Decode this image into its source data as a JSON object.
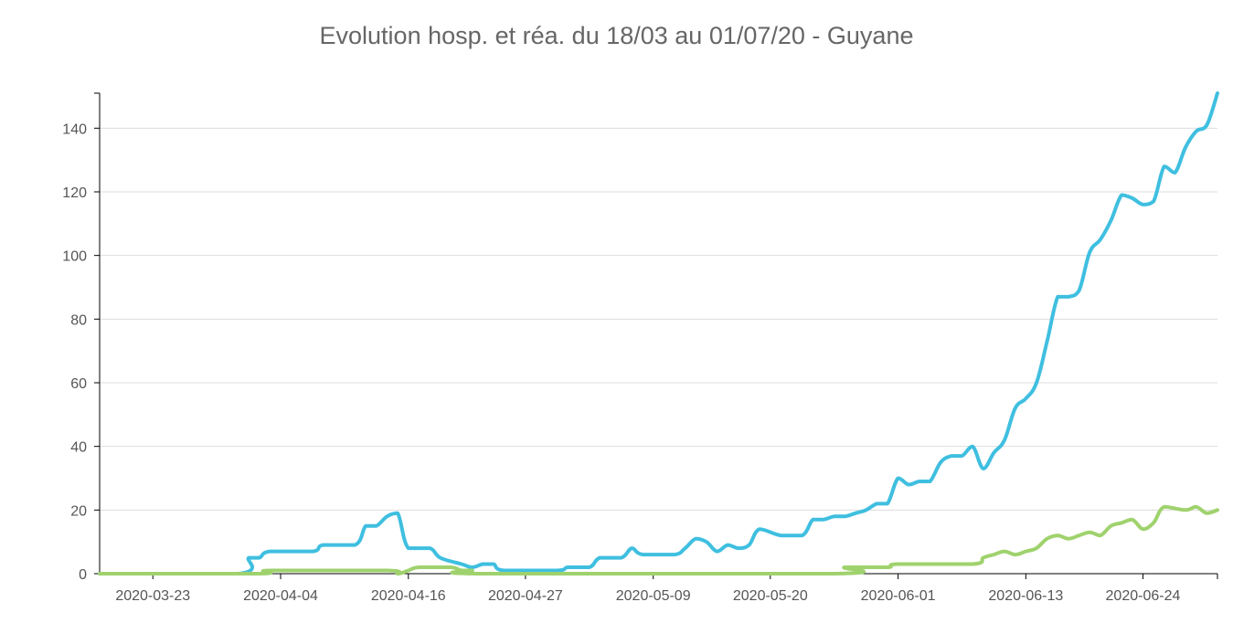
{
  "chart_data": {
    "type": "line",
    "title": "Evolution hosp. et réa. du 18/03 au 01/07/20 - Guyane",
    "xlabel": "",
    "ylabel": "",
    "x_start": "2020-03-18",
    "x_end": "2020-07-01",
    "x_ticks": [
      "2020-03-23",
      "2020-04-04",
      "2020-04-16",
      "2020-04-27",
      "2020-05-09",
      "2020-05-20",
      "2020-06-01",
      "2020-06-13",
      "2020-06-24"
    ],
    "y_ticks": [
      0,
      20,
      40,
      60,
      80,
      100,
      120,
      140
    ],
    "ylim": [
      0,
      151
    ],
    "grid": true,
    "legend": "none",
    "series": [
      {
        "color": "#3fbfe0",
        "points": [
          [
            "2020-03-18",
            0
          ],
          [
            "2020-03-31",
            0
          ],
          [
            "2020-04-01",
            5
          ],
          [
            "2020-04-02",
            5
          ],
          [
            "2020-04-03",
            7
          ],
          [
            "2020-04-07",
            7
          ],
          [
            "2020-04-08",
            9
          ],
          [
            "2020-04-11",
            9
          ],
          [
            "2020-04-12",
            15
          ],
          [
            "2020-04-13",
            15
          ],
          [
            "2020-04-14",
            18
          ],
          [
            "2020-04-15",
            19
          ],
          [
            "2020-04-16",
            8
          ],
          [
            "2020-04-18",
            8
          ],
          [
            "2020-04-19",
            5
          ],
          [
            "2020-04-21",
            3
          ],
          [
            "2020-04-22",
            2
          ],
          [
            "2020-04-23",
            3
          ],
          [
            "2020-04-24",
            3
          ],
          [
            "2020-04-25",
            1
          ],
          [
            "2020-04-30",
            1
          ],
          [
            "2020-05-01",
            2
          ],
          [
            "2020-05-03",
            2
          ],
          [
            "2020-05-04",
            5
          ],
          [
            "2020-05-06",
            5
          ],
          [
            "2020-05-07",
            8
          ],
          [
            "2020-05-08",
            6
          ],
          [
            "2020-05-11",
            6
          ],
          [
            "2020-05-12",
            8
          ],
          [
            "2020-05-13",
            11
          ],
          [
            "2020-05-14",
            10
          ],
          [
            "2020-05-15",
            7
          ],
          [
            "2020-05-16",
            9
          ],
          [
            "2020-05-17",
            8
          ],
          [
            "2020-05-18",
            9
          ],
          [
            "2020-05-19",
            14
          ],
          [
            "2020-05-21",
            12
          ],
          [
            "2020-05-23",
            12
          ],
          [
            "2020-05-24",
            17
          ],
          [
            "2020-05-25",
            17
          ],
          [
            "2020-05-26",
            18
          ],
          [
            "2020-05-27",
            18
          ],
          [
            "2020-05-28",
            19
          ],
          [
            "2020-05-29",
            20
          ],
          [
            "2020-05-30",
            22
          ],
          [
            "2020-05-31",
            22
          ],
          [
            "2020-06-01",
            30
          ],
          [
            "2020-06-02",
            28
          ],
          [
            "2020-06-03",
            29
          ],
          [
            "2020-06-04",
            29
          ],
          [
            "2020-06-05",
            35
          ],
          [
            "2020-06-06",
            37
          ],
          [
            "2020-06-07",
            37
          ],
          [
            "2020-06-08",
            40
          ],
          [
            "2020-06-09",
            33
          ],
          [
            "2020-06-10",
            38
          ],
          [
            "2020-06-11",
            42
          ],
          [
            "2020-06-12",
            52
          ],
          [
            "2020-06-13",
            55
          ],
          [
            "2020-06-14",
            60
          ],
          [
            "2020-06-15",
            73
          ],
          [
            "2020-06-16",
            87
          ],
          [
            "2020-06-17",
            87
          ],
          [
            "2020-06-18",
            89
          ],
          [
            "2020-06-19",
            101
          ],
          [
            "2020-06-20",
            105
          ],
          [
            "2020-06-21",
            111
          ],
          [
            "2020-06-22",
            119
          ],
          [
            "2020-06-23",
            118
          ],
          [
            "2020-06-24",
            116
          ],
          [
            "2020-06-25",
            117
          ],
          [
            "2020-06-26",
            128
          ],
          [
            "2020-06-27",
            126
          ],
          [
            "2020-06-28",
            134
          ],
          [
            "2020-06-29",
            139
          ],
          [
            "2020-06-30",
            141
          ],
          [
            "2020-07-01",
            151
          ]
        ]
      },
      {
        "color": "#9fd26d",
        "points": [
          [
            "2020-03-18",
            0
          ],
          [
            "2020-04-02",
            0
          ],
          [
            "2020-04-03",
            1
          ],
          [
            "2020-04-14",
            1
          ],
          [
            "2020-04-15",
            0
          ],
          [
            "2020-04-16",
            1
          ],
          [
            "2020-04-17",
            2
          ],
          [
            "2020-04-20",
            2
          ],
          [
            "2020-04-21",
            1
          ],
          [
            "2020-04-22",
            1
          ],
          [
            "2020-04-23",
            0
          ],
          [
            "2020-05-26",
            0
          ],
          [
            "2020-05-27",
            2
          ],
          [
            "2020-05-31",
            2
          ],
          [
            "2020-06-01",
            3
          ],
          [
            "2020-06-08",
            3
          ],
          [
            "2020-06-09",
            5
          ],
          [
            "2020-06-10",
            6
          ],
          [
            "2020-06-11",
            7
          ],
          [
            "2020-06-12",
            6
          ],
          [
            "2020-06-13",
            7
          ],
          [
            "2020-06-14",
            8
          ],
          [
            "2020-06-15",
            11
          ],
          [
            "2020-06-16",
            12
          ],
          [
            "2020-06-17",
            11
          ],
          [
            "2020-06-18",
            12
          ],
          [
            "2020-06-19",
            13
          ],
          [
            "2020-06-20",
            12
          ],
          [
            "2020-06-21",
            15
          ],
          [
            "2020-06-22",
            16
          ],
          [
            "2020-06-23",
            17
          ],
          [
            "2020-06-24",
            14
          ],
          [
            "2020-06-25",
            16
          ],
          [
            "2020-06-26",
            21
          ],
          [
            "2020-06-28",
            20
          ],
          [
            "2020-06-29",
            21
          ],
          [
            "2020-06-30",
            19
          ],
          [
            "2020-07-01",
            20
          ]
        ]
      }
    ]
  }
}
